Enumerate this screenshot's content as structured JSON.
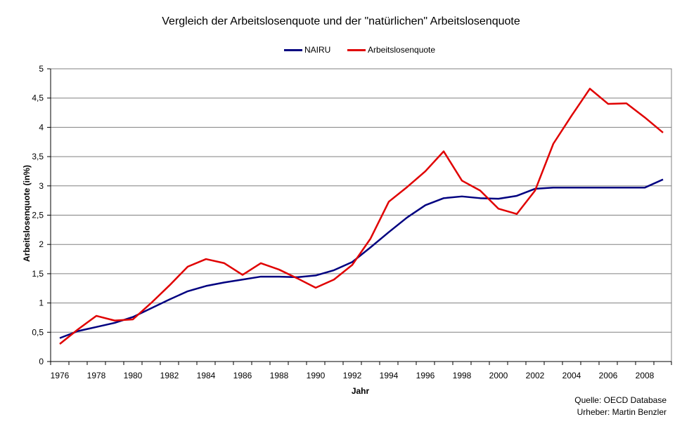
{
  "chart_data": {
    "type": "line",
    "title": "Vergleich der Arbeitslosenquote und der \"natürlichen\" Arbeitslosenquote",
    "xlabel": "Jahr",
    "ylabel": "Arbeitslosenquote (in%)",
    "ylim": [
      0,
      5
    ],
    "yticks": [
      "0",
      "0,5",
      "1",
      "1,5",
      "2",
      "2,5",
      "3",
      "3,5",
      "4",
      "4,5",
      "5"
    ],
    "ytick_values": [
      0,
      0.5,
      1,
      1.5,
      2,
      2.5,
      3,
      3.5,
      4,
      4.5,
      5
    ],
    "x": [
      1976,
      1977,
      1978,
      1979,
      1980,
      1981,
      1982,
      1983,
      1984,
      1985,
      1986,
      1987,
      1988,
      1989,
      1990,
      1991,
      1992,
      1993,
      1994,
      1995,
      1996,
      1997,
      1998,
      1999,
      2000,
      2001,
      2002,
      2003,
      2004,
      2005,
      2006,
      2007,
      2008,
      2009
    ],
    "xticks": [
      "1976",
      "1978",
      "1980",
      "1982",
      "1984",
      "1986",
      "1988",
      "1990",
      "1992",
      "1994",
      "1996",
      "1998",
      "2000",
      "2002",
      "2004",
      "2006",
      "2008"
    ],
    "grid": "horizontal",
    "legend_position": "top",
    "series": [
      {
        "name": "NAIRU",
        "color": "#000080",
        "values": [
          0.4,
          0.52,
          0.59,
          0.66,
          0.76,
          0.91,
          1.06,
          1.2,
          1.29,
          1.35,
          1.4,
          1.45,
          1.45,
          1.44,
          1.47,
          1.56,
          1.7,
          1.95,
          2.21,
          2.46,
          2.67,
          2.79,
          2.82,
          2.79,
          2.78,
          2.83,
          2.95,
          2.97,
          2.97,
          2.97,
          2.97,
          2.97,
          2.97,
          3.11
        ]
      },
      {
        "name": "Arbeitslosenquote",
        "color": "#e00000",
        "values": [
          0.3,
          0.55,
          0.78,
          0.7,
          0.72,
          1.0,
          1.3,
          1.62,
          1.75,
          1.68,
          1.48,
          1.68,
          1.57,
          1.42,
          1.26,
          1.4,
          1.65,
          2.1,
          2.73,
          2.98,
          3.25,
          3.59,
          3.09,
          2.92,
          2.61,
          2.52,
          2.92,
          3.72,
          4.2,
          4.66,
          4.4,
          4.41,
          4.17,
          3.91
        ]
      }
    ]
  },
  "source": "Quelle: OECD Database",
  "author": "Urheber: Martin Benzler"
}
